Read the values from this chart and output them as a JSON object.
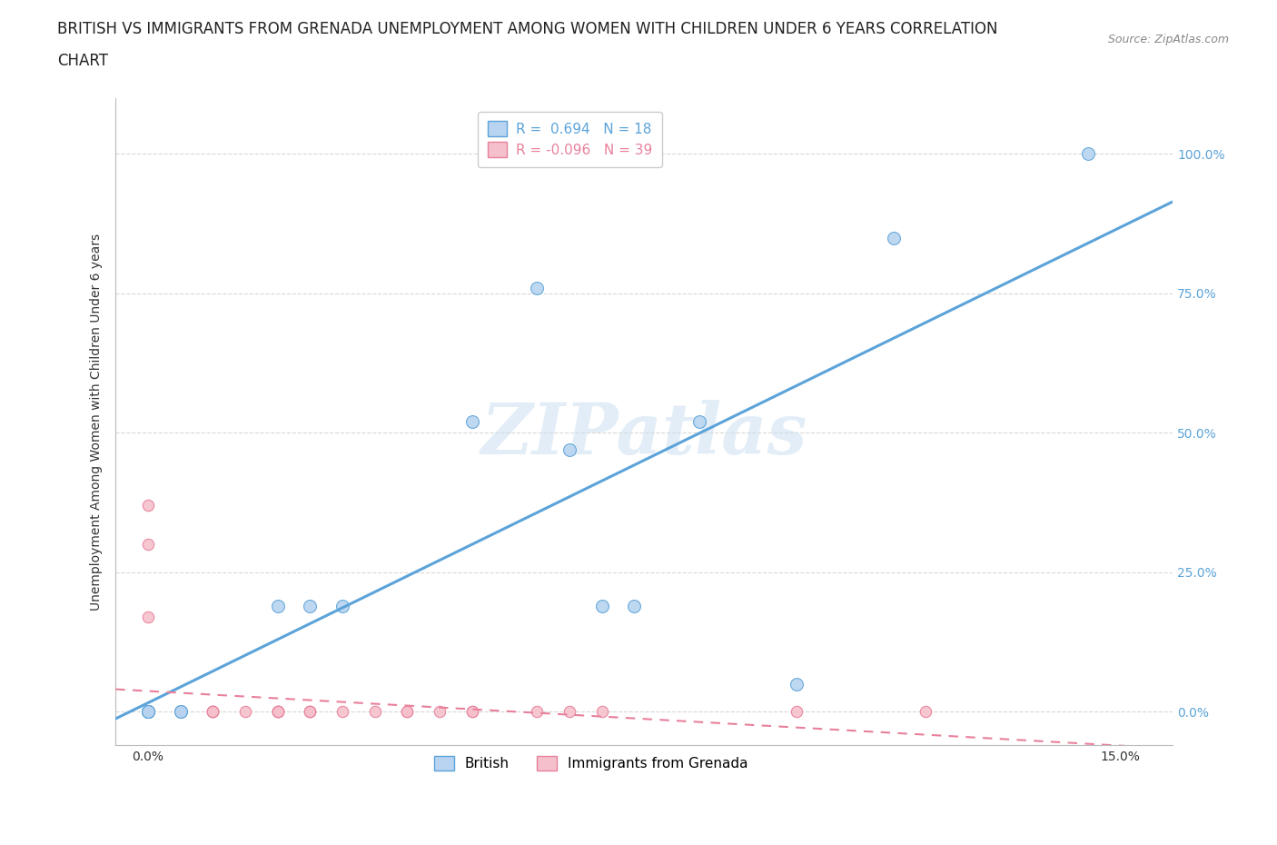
{
  "title_line1": "BRITISH VS IMMIGRANTS FROM GRENADA UNEMPLOYMENT AMONG WOMEN WITH CHILDREN UNDER 6 YEARS CORRELATION",
  "title_line2": "CHART",
  "source": "Source: ZipAtlas.com",
  "ylabel": "Unemployment Among Women with Children Under 6 years",
  "x_tick_labels": [
    "0.0%",
    "",
    "",
    "",
    "",
    "15.0%"
  ],
  "x_ticks": [
    0.0,
    0.03,
    0.06,
    0.09,
    0.12,
    0.15
  ],
  "y_ticks": [
    0.0,
    0.25,
    0.5,
    0.75,
    1.0
  ],
  "y_tick_labels": [
    "0.0%",
    "25.0%",
    "50.0%",
    "75.0%",
    "100.0%"
  ],
  "xlim": [
    -0.005,
    0.158
  ],
  "ylim": [
    -0.06,
    1.1
  ],
  "british_R": 0.694,
  "british_N": 18,
  "grenada_R": -0.096,
  "grenada_N": 39,
  "british_color": "#b8d4f0",
  "british_line_color": "#5ba3d9",
  "grenada_color": "#f5c0cc",
  "grenada_line_color": "#e8809a",
  "legend_label_british": "British",
  "legend_label_grenada": "Immigrants from Grenada",
  "british_x": [
    0.0,
    0.0,
    0.0,
    0.0,
    0.005,
    0.005,
    0.02,
    0.025,
    0.03,
    0.05,
    0.06,
    0.065,
    0.07,
    0.075,
    0.085,
    0.1,
    0.115,
    0.145
  ],
  "british_y": [
    0.0,
    0.0,
    0.0,
    0.0,
    0.0,
    0.0,
    0.19,
    0.19,
    0.19,
    0.52,
    0.76,
    0.47,
    0.19,
    0.19,
    0.52,
    0.05,
    0.85,
    1.0
  ],
  "grenada_x": [
    0.0,
    0.0,
    0.0,
    0.0,
    0.0,
    0.0,
    0.0,
    0.0,
    0.0,
    0.0,
    0.005,
    0.005,
    0.005,
    0.005,
    0.005,
    0.01,
    0.01,
    0.01,
    0.01,
    0.015,
    0.02,
    0.02,
    0.02,
    0.02,
    0.025,
    0.025,
    0.025,
    0.03,
    0.035,
    0.04,
    0.04,
    0.045,
    0.05,
    0.05,
    0.06,
    0.065,
    0.07,
    0.1,
    0.12
  ],
  "grenada_y": [
    0.0,
    0.0,
    0.0,
    0.0,
    0.0,
    0.0,
    0.0,
    0.17,
    0.3,
    0.37,
    0.0,
    0.0,
    0.0,
    0.0,
    0.0,
    0.0,
    0.0,
    0.0,
    0.0,
    0.0,
    0.0,
    0.0,
    0.0,
    0.0,
    0.0,
    0.0,
    0.0,
    0.0,
    0.0,
    0.0,
    0.0,
    0.0,
    0.0,
    0.0,
    0.0,
    0.0,
    0.0,
    0.0,
    0.0
  ],
  "watermark": "ZIPatlas",
  "background_color": "#ffffff",
  "grid_color": "#d8d8d8",
  "title_fontsize": 12,
  "axis_label_fontsize": 10,
  "tick_fontsize": 10,
  "legend_fontsize": 11,
  "scatter_size_british": 100,
  "scatter_size_grenada": 80
}
